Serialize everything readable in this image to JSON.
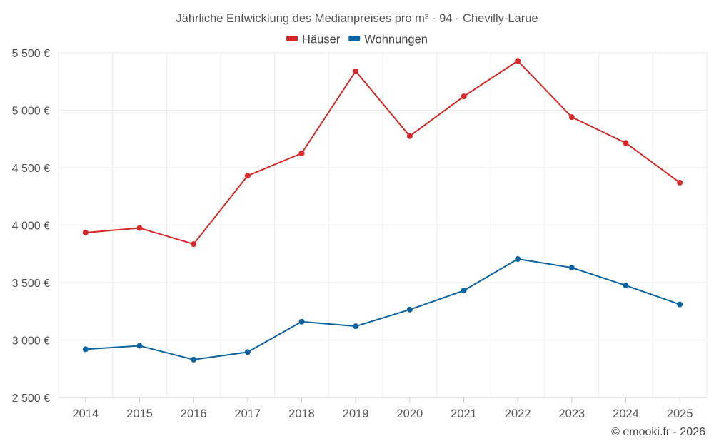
{
  "chart_data": {
    "type": "line",
    "title": "Jährliche Entwicklung des Medianpreises pro m² - 94 - Chevilly-Larue",
    "categories": [
      "2014",
      "2015",
      "2016",
      "2017",
      "2018",
      "2019",
      "2020",
      "2021",
      "2022",
      "2023",
      "2024",
      "2025"
    ],
    "series": [
      {
        "name": "Häuser",
        "color": "#d62728",
        "values": [
          3935,
          3975,
          3835,
          4430,
          4625,
          5340,
          4775,
          5120,
          5430,
          4940,
          4715,
          4370
        ]
      },
      {
        "name": "Wohnungen",
        "color": "#0b63a0",
        "values": [
          2920,
          2950,
          2830,
          2895,
          3160,
          3120,
          3265,
          3430,
          3705,
          3630,
          3475,
          3310
        ]
      }
    ],
    "ylim": [
      2500,
      5500
    ],
    "yticks": [
      2500,
      3000,
      3500,
      4000,
      4500,
      5000,
      5500
    ],
    "ytick_labels": [
      "2 500 €",
      "3 000 €",
      "3 500 €",
      "4 000 €",
      "4 500 €",
      "5 000 €",
      "5 500 €"
    ],
    "xlabel": "",
    "ylabel": "",
    "grid": true,
    "legend_position": "top-center"
  },
  "credit": "© emooki.fr - 2026"
}
